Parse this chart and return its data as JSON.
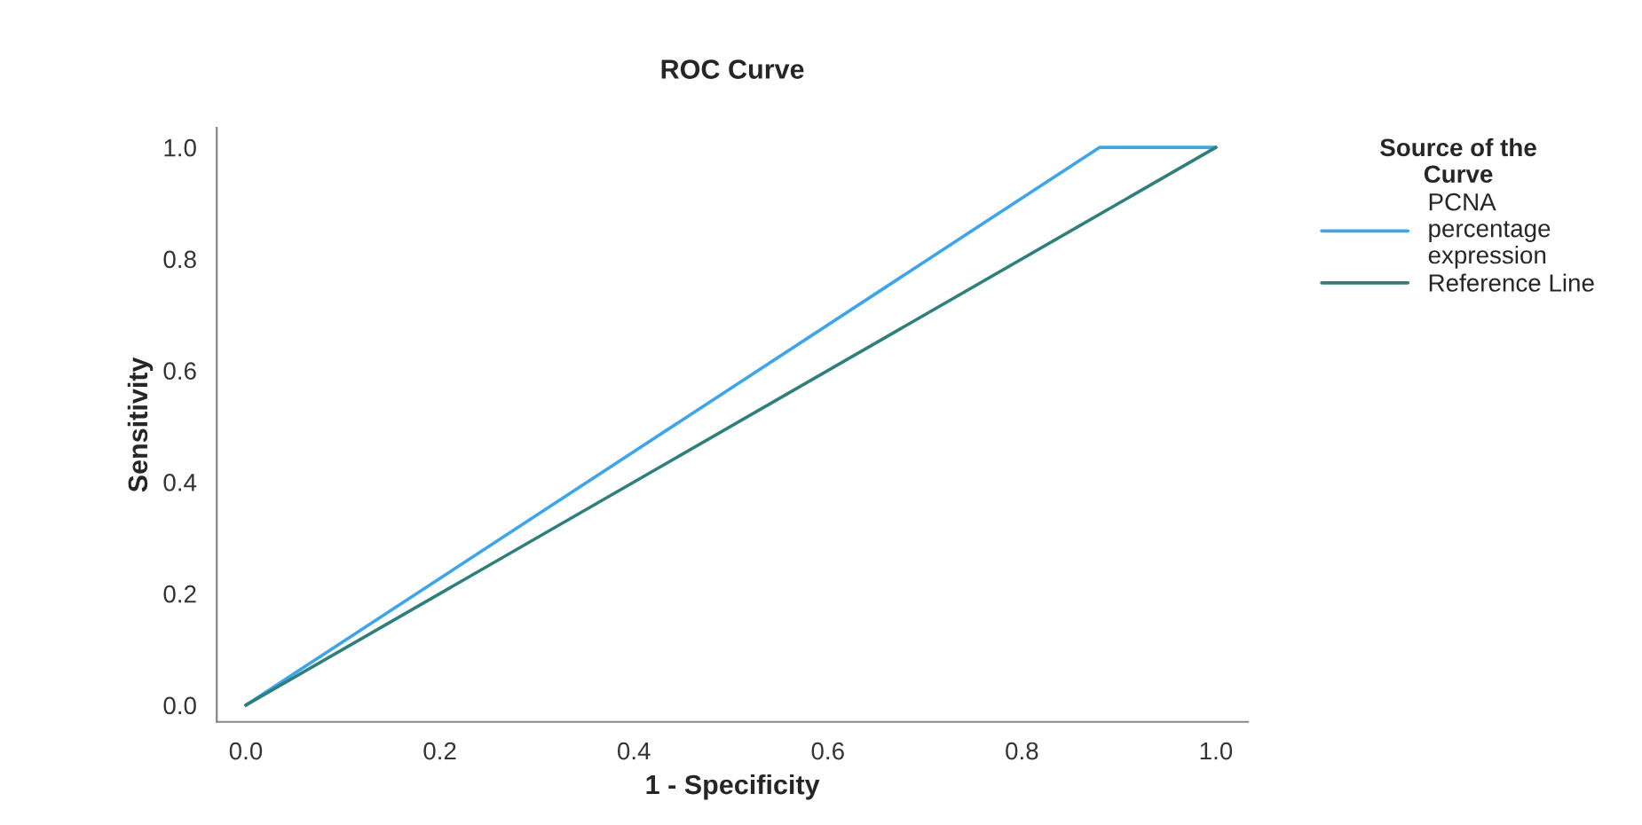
{
  "chart_data": {
    "type": "line",
    "title": "ROC Curve",
    "xlabel": "1 - Specificity",
    "ylabel": "Sensitivity",
    "legend_title": "Source of the\nCurve",
    "series": [
      {
        "name": "PCNA\npercentage\nexpression",
        "color": "#3ea6e8",
        "x": [
          0.0,
          0.88,
          1.0
        ],
        "values": [
          0.0,
          1.0,
          1.0
        ]
      },
      {
        "name": "Reference Line",
        "color": "#2f7f7a",
        "x": [
          0.0,
          1.0
        ],
        "values": [
          0.0,
          1.0
        ]
      }
    ],
    "xlim": [
      -0.03,
      1.033
    ],
    "ylim": [
      -0.03,
      1.035
    ],
    "xticks": [
      {
        "value": 0.0,
        "label": "0.0"
      },
      0.2,
      0.4,
      0.6,
      0.8,
      {
        "value": 1.0,
        "label": "1.0"
      }
    ],
    "yticks": [
      {
        "value": 0.0,
        "label": "0.0"
      },
      0.2,
      0.4,
      0.6,
      0.8,
      {
        "value": 1.0,
        "label": "1.0"
      }
    ],
    "grid": false,
    "legend": "right",
    "marker": "none",
    "line_style": "solid"
  }
}
